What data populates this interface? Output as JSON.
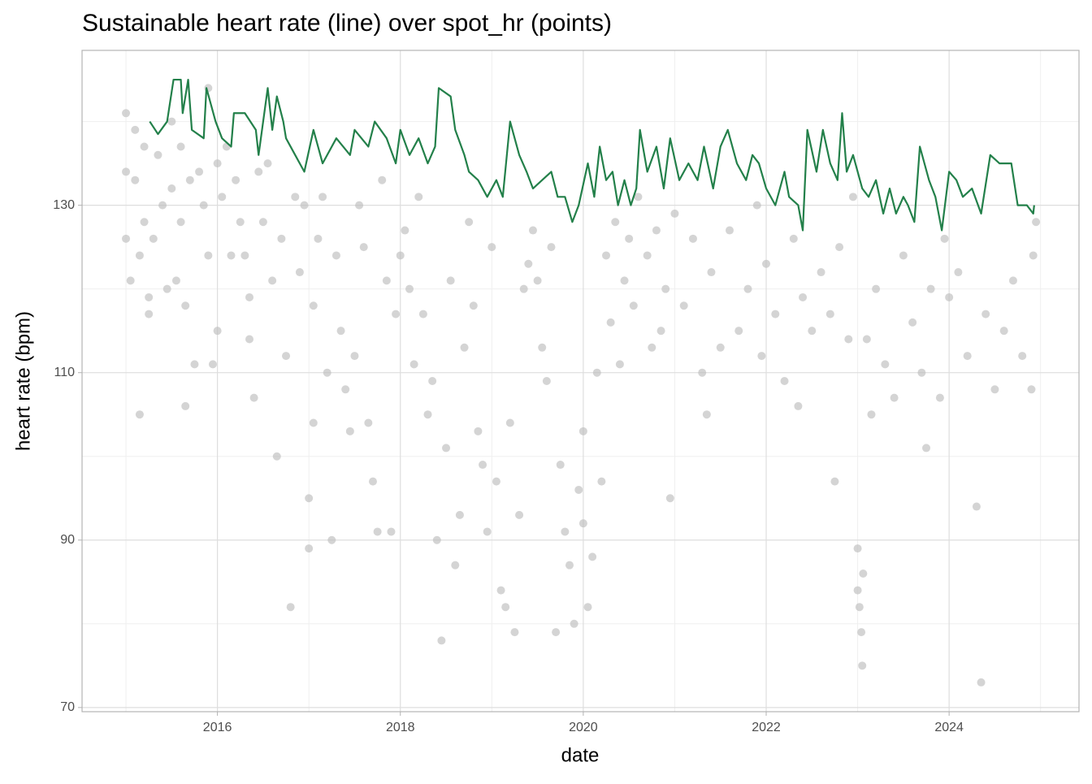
{
  "chart_data": {
    "type": "line",
    "title": "Sustainable heart rate (line) over spot_hr (points)",
    "x_label": "date",
    "y_label": "heart rate (bpm)",
    "xlim": [
      2014.52,
      2025.42
    ],
    "xticks": [
      2016,
      2018,
      2020,
      2022,
      2024
    ],
    "ylim": [
      69.5,
      148.5
    ],
    "yticks": [
      70,
      90,
      110,
      130
    ],
    "grid": true,
    "series": [
      {
        "type": "scatter",
        "color": "#bdbdbd",
        "x": [
          2015.0,
          2015.0,
          2015.0,
          2015.05,
          2015.1,
          2015.1,
          2015.15,
          2015.15,
          2015.2,
          2015.2,
          2015.25,
          2015.25,
          2015.3,
          2015.35,
          2015.4,
          2015.45,
          2015.5,
          2015.5,
          2015.55,
          2015.6,
          2015.6,
          2015.65,
          2015.65,
          2015.7,
          2015.75,
          2015.8,
          2015.85,
          2015.9,
          2015.9,
          2015.95,
          2016.0,
          2016.0,
          2016.05,
          2016.1,
          2016.15,
          2016.2,
          2016.25,
          2016.3,
          2016.35,
          2016.35,
          2016.4,
          2016.45,
          2016.5,
          2016.55,
          2016.6,
          2016.65,
          2016.7,
          2016.75,
          2016.8,
          2016.85,
          2016.9,
          2016.95,
          2017.0,
          2017.0,
          2017.05,
          2017.05,
          2017.1,
          2017.15,
          2017.2,
          2017.25,
          2017.3,
          2017.35,
          2017.4,
          2017.45,
          2017.5,
          2017.55,
          2017.6,
          2017.65,
          2017.7,
          2017.75,
          2017.8,
          2017.85,
          2017.9,
          2017.95,
          2018.0,
          2018.05,
          2018.1,
          2018.15,
          2018.2,
          2018.25,
          2018.3,
          2018.35,
          2018.4,
          2018.45,
          2018.5,
          2018.55,
          2018.6,
          2018.65,
          2018.7,
          2018.75,
          2018.8,
          2018.85,
          2018.9,
          2018.95,
          2019.0,
          2019.05,
          2019.1,
          2019.15,
          2019.2,
          2019.25,
          2019.3,
          2019.35,
          2019.4,
          2019.45,
          2019.5,
          2019.55,
          2019.6,
          2019.65,
          2019.7,
          2019.75,
          2019.8,
          2019.85,
          2019.9,
          2019.95,
          2020.0,
          2020.0,
          2020.05,
          2020.1,
          2020.15,
          2020.2,
          2020.25,
          2020.3,
          2020.35,
          2020.4,
          2020.45,
          2020.5,
          2020.55,
          2020.6,
          2020.7,
          2020.75,
          2020.8,
          2020.85,
          2020.9,
          2020.95,
          2021.0,
          2021.1,
          2021.2,
          2021.3,
          2021.35,
          2021.4,
          2021.5,
          2021.6,
          2021.7,
          2021.8,
          2021.9,
          2021.95,
          2022.0,
          2022.1,
          2022.2,
          2022.3,
          2022.35,
          2022.4,
          2022.5,
          2022.6,
          2022.7,
          2022.75,
          2022.8,
          2022.9,
          2022.95,
          2023.0,
          2023.0,
          2023.02,
          2023.04,
          2023.05,
          2023.06,
          2023.1,
          2023.15,
          2023.2,
          2023.3,
          2023.4,
          2023.5,
          2023.6,
          2023.7,
          2023.75,
          2023.8,
          2023.9,
          2023.95,
          2024.0,
          2024.1,
          2024.2,
          2024.3,
          2024.35,
          2024.4,
          2024.5,
          2024.6,
          2024.7,
          2024.8,
          2024.9,
          2024.92,
          2024.95
        ],
        "values": [
          134,
          141,
          126,
          121,
          133,
          139,
          124,
          105,
          137,
          128,
          119,
          117,
          126,
          136,
          130,
          120,
          140,
          132,
          121,
          137,
          128,
          118,
          106,
          133,
          111,
          134,
          130,
          124,
          144,
          111,
          135,
          115,
          131,
          137,
          124,
          133,
          128,
          124,
          119,
          114,
          107,
          134,
          128,
          135,
          121,
          100,
          126,
          112,
          82,
          131,
          122,
          130,
          95,
          89,
          104,
          118,
          126,
          131,
          110,
          90,
          124,
          115,
          108,
          103,
          112,
          130,
          125,
          104,
          97,
          91,
          133,
          121,
          91,
          117,
          124,
          127,
          120,
          111,
          131,
          117,
          105,
          109,
          90,
          78,
          101,
          121,
          87,
          93,
          113,
          128,
          118,
          103,
          99,
          91,
          125,
          97,
          84,
          82,
          104,
          79,
          93,
          120,
          123,
          127,
          121,
          113,
          109,
          125,
          79,
          99,
          91,
          87,
          80,
          96,
          92,
          103,
          82,
          88,
          110,
          97,
          124,
          116,
          128,
          111,
          121,
          126,
          118,
          131,
          124,
          113,
          127,
          115,
          120,
          95,
          129,
          118,
          126,
          110,
          105,
          122,
          113,
          127,
          115,
          120,
          130,
          112,
          123,
          117,
          109,
          126,
          106,
          119,
          115,
          122,
          117,
          97,
          125,
          114,
          131,
          89,
          84,
          82,
          79,
          75,
          86,
          114,
          105,
          120,
          111,
          107,
          124,
          116,
          110,
          101,
          120,
          107,
          126,
          119,
          122,
          112,
          94,
          73,
          117,
          108,
          115,
          121,
          112,
          108,
          124,
          128
        ]
      },
      {
        "type": "line",
        "color": "#23804a",
        "x": [
          2015.26,
          2015.35,
          2015.45,
          2015.52,
          2015.6,
          2015.62,
          2015.68,
          2015.72,
          2015.85,
          2015.88,
          2015.98,
          2016.05,
          2016.15,
          2016.18,
          2016.3,
          2016.42,
          2016.45,
          2016.55,
          2016.6,
          2016.65,
          2016.72,
          2016.75,
          2016.85,
          2016.95,
          2017.05,
          2017.15,
          2017.3,
          2017.45,
          2017.5,
          2017.65,
          2017.72,
          2017.85,
          2017.95,
          2018.0,
          2018.1,
          2018.2,
          2018.3,
          2018.38,
          2018.42,
          2018.55,
          2018.6,
          2018.7,
          2018.75,
          2018.85,
          2018.95,
          2019.05,
          2019.12,
          2019.2,
          2019.3,
          2019.38,
          2019.45,
          2019.55,
          2019.65,
          2019.72,
          2019.8,
          2019.88,
          2019.95,
          2020.05,
          2020.12,
          2020.18,
          2020.25,
          2020.32,
          2020.38,
          2020.45,
          2020.52,
          2020.58,
          2020.62,
          2020.7,
          2020.8,
          2020.88,
          2020.95,
          2021.05,
          2021.15,
          2021.25,
          2021.32,
          2021.42,
          2021.5,
          2021.58,
          2021.68,
          2021.78,
          2021.85,
          2021.92,
          2022.0,
          2022.1,
          2022.2,
          2022.25,
          2022.35,
          2022.4,
          2022.45,
          2022.55,
          2022.62,
          2022.7,
          2022.78,
          2022.83,
          2022.88,
          2022.95,
          2023.05,
          2023.12,
          2023.2,
          2023.28,
          2023.35,
          2023.42,
          2023.5,
          2023.55,
          2023.62,
          2023.68,
          2023.78,
          2023.85,
          2023.92,
          2024.0,
          2024.08,
          2024.15,
          2024.25,
          2024.35,
          2024.45,
          2024.55,
          2024.68,
          2024.75,
          2024.85,
          2024.92,
          2024.93
        ],
        "values": [
          140,
          138.5,
          140,
          145,
          145,
          141,
          145,
          139,
          138,
          144,
          140,
          138,
          137,
          141,
          141,
          139,
          136,
          144,
          139,
          143,
          140,
          138,
          136,
          134,
          139,
          135,
          138,
          136,
          139,
          137,
          140,
          138,
          135,
          139,
          136,
          138,
          135,
          137,
          144,
          143,
          139,
          136,
          134,
          133,
          131,
          133,
          131,
          140,
          136,
          134,
          132,
          133,
          134,
          131,
          131,
          128,
          130,
          135,
          131,
          137,
          133,
          134,
          130,
          133,
          130,
          132,
          139,
          134,
          137,
          132,
          138,
          133,
          135,
          133,
          137,
          132,
          137,
          139,
          135,
          133,
          136,
          135,
          132,
          130,
          134,
          131,
          130,
          127,
          139,
          134,
          139,
          135,
          133,
          141,
          134,
          136,
          132,
          131,
          133,
          129,
          132,
          129,
          131,
          130,
          128,
          137,
          133,
          131,
          127,
          134,
          133,
          131,
          132,
          129,
          136,
          135,
          135,
          130,
          130,
          129,
          130
        ]
      }
    ]
  }
}
